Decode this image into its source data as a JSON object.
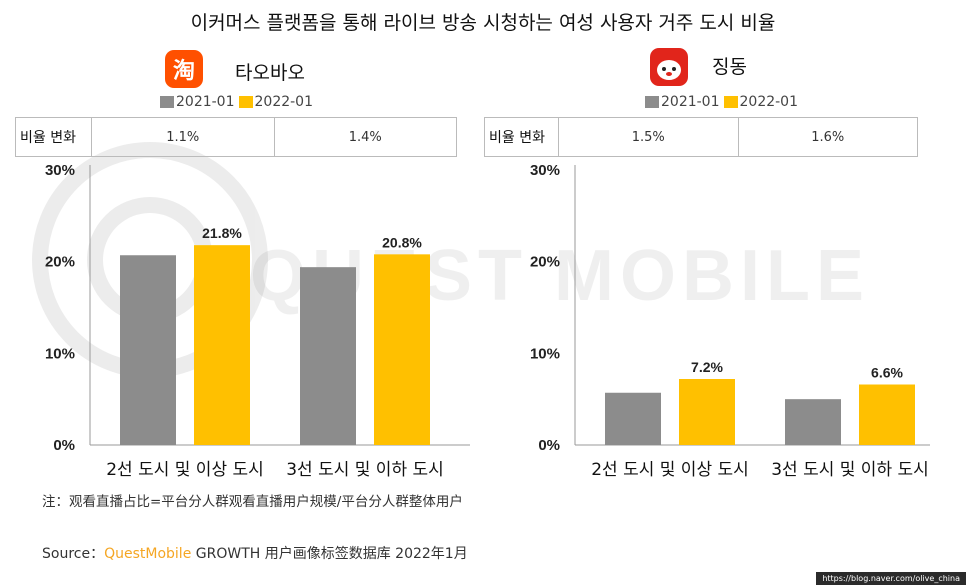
{
  "title": "이커머스 플랫폼을 통해 라이브 방송 시청하는 여성 사용자 거주 도시 비율",
  "watermark": "QUEST MOBILE",
  "colors": {
    "series_2021": "#8c8c8c",
    "series_2022": "#ffc000",
    "source_brand": "#f5a623"
  },
  "brands": [
    {
      "name": "타오바오",
      "icon": "taobao-logo-icon",
      "icon_text": "淘"
    },
    {
      "name": "징동",
      "icon": "jd-logo-icon"
    }
  ],
  "legend": [
    "2021-01",
    "2022-01"
  ],
  "rate_change_label": "비율 변화",
  "chart_data": [
    {
      "type": "bar",
      "brand": "타오바오",
      "categories": [
        "2선 도시 및 이상 도시",
        "3선 도시 및 이하 도시"
      ],
      "series": [
        {
          "name": "2021-01",
          "values": [
            20.7,
            19.4
          ]
        },
        {
          "name": "2022-01",
          "values": [
            21.8,
            20.8
          ]
        }
      ],
      "data_labels": [
        "21.8%",
        "20.8%"
      ],
      "rate_change": [
        "1.1%",
        "1.4%"
      ],
      "ylim": [
        0,
        30
      ],
      "yticks": [
        "0%",
        "10%",
        "20%",
        "30%"
      ],
      "grid": false,
      "legend_position": "top"
    },
    {
      "type": "bar",
      "brand": "징동",
      "categories": [
        "2선 도시 및 이상 도시",
        "3선 도시 및 이하 도시"
      ],
      "series": [
        {
          "name": "2021-01",
          "values": [
            5.7,
            5.0
          ]
        },
        {
          "name": "2022-01",
          "values": [
            7.2,
            6.6
          ]
        }
      ],
      "data_labels": [
        "7.2%",
        "6.6%"
      ],
      "rate_change": [
        "1.5%",
        "1.6%"
      ],
      "ylim": [
        0,
        30
      ],
      "yticks": [
        "0%",
        "10%",
        "20%",
        "30%"
      ],
      "grid": false,
      "legend_position": "top"
    }
  ],
  "note": "注：观看直播占比=平台分人群观看直播用户规模/平台分人群整体用户",
  "source": {
    "prefix": "Source：",
    "brand": "QuestMobile",
    "rest": " GROWTH 用户画像标签数据库 2022年1月"
  },
  "url": "https://blog.naver.com/olive_china"
}
